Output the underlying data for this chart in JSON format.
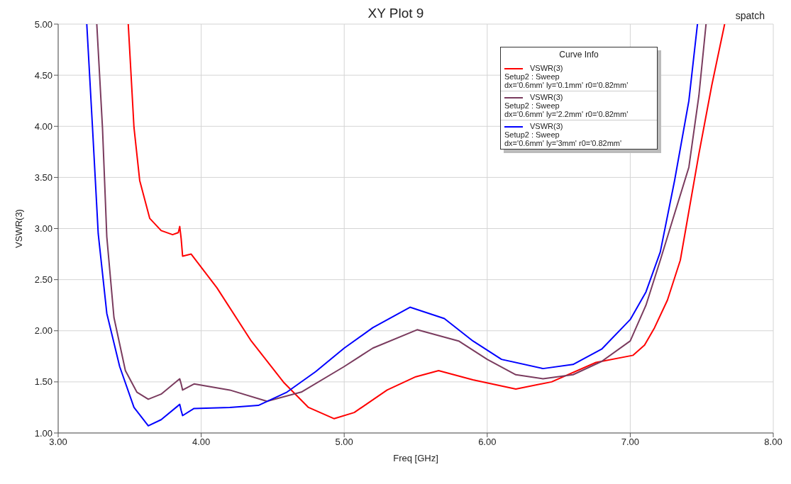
{
  "chart_data": {
    "type": "line",
    "title": "XY Plot 9",
    "xlabel": "Freq [GHz]",
    "ylabel": "VSWR(3)",
    "legend_title": "Curve Info",
    "annotations": [
      "spatch"
    ],
    "xlim": [
      3,
      8
    ],
    "xticks": [
      {
        "value": 3,
        "label": "3.00"
      },
      {
        "value": 4,
        "label": "4.00"
      },
      {
        "value": 5,
        "label": "5.00"
      },
      {
        "value": 6,
        "label": "6.00"
      },
      {
        "value": 7,
        "label": "7.00"
      },
      {
        "value": 8,
        "label": "8.00"
      }
    ],
    "ylim": [
      1,
      5
    ],
    "yticks": [
      {
        "value": 1,
        "label": "1.00"
      },
      {
        "value": 1.5,
        "label": "1.50"
      },
      {
        "value": 2,
        "label": "2.00"
      },
      {
        "value": 2.5,
        "label": "2.50"
      },
      {
        "value": 3,
        "label": "3.00"
      },
      {
        "value": 3.5,
        "label": "3.50"
      },
      {
        "value": 4,
        "label": "4.00"
      },
      {
        "value": 4.5,
        "label": "4.50"
      },
      {
        "value": 5,
        "label": "5.00"
      }
    ],
    "grid": true,
    "legend": "top right",
    "marker": "none",
    "line_style": "solid",
    "series": [
      {
        "name": "VSWR(3)\nSetup2 : Sweep\ndx='0.6mm' ly='0.1mm' r0='0.82mm'",
        "color": "#ff0000",
        "x": [
          3.49,
          3.53,
          3.57,
          3.64,
          3.72,
          3.8,
          3.84,
          3.85,
          3.86,
          3.87,
          3.93,
          4.11,
          4.35,
          4.58,
          4.75,
          4.93,
          5.07,
          5.3,
          5.5,
          5.66,
          5.9,
          6.2,
          6.45,
          6.76,
          7.02,
          7.1,
          7.17,
          7.26,
          7.35,
          7.48,
          7.57,
          7.66
        ],
        "values": [
          5,
          3.99,
          3.47,
          3.1,
          2.98,
          2.94,
          2.96,
          3.02,
          2.9,
          2.73,
          2.75,
          2.42,
          1.9,
          1.49,
          1.25,
          1.14,
          1.2,
          1.42,
          1.55,
          1.61,
          1.52,
          1.43,
          1.5,
          1.69,
          1.76,
          1.86,
          2.03,
          2.3,
          2.69,
          3.73,
          4.4,
          5
        ]
      },
      {
        "name": "VSWR(3)\nSetup2 : Sweep\ndx='0.6mm' ly='2.2mm' r0='0.82mm'",
        "color": "#7a3b5e",
        "x": [
          3.27,
          3.31,
          3.34,
          3.39,
          3.47,
          3.55,
          3.63,
          3.72,
          3.85,
          3.86,
          3.87,
          3.95,
          4.2,
          4.46,
          4.7,
          5.0,
          5.2,
          5.51,
          5.8,
          6.0,
          6.2,
          6.39,
          6.6,
          6.8,
          7.0,
          7.11,
          7.21,
          7.3,
          7.41,
          7.48,
          7.53
        ],
        "values": [
          5,
          3.98,
          2.92,
          2.13,
          1.61,
          1.4,
          1.33,
          1.38,
          1.53,
          1.48,
          1.42,
          1.48,
          1.42,
          1.31,
          1.4,
          1.65,
          1.83,
          2.01,
          1.9,
          1.72,
          1.57,
          1.53,
          1.57,
          1.7,
          1.9,
          2.25,
          2.69,
          3.1,
          3.6,
          4.3,
          5
        ]
      },
      {
        "name": "VSWR(3)\nSetup2 : Sweep\ndx='0.6mm' ly='3mm' r0='0.82mm'",
        "color": "#0000ff",
        "x": [
          3.2,
          3.24,
          3.28,
          3.34,
          3.43,
          3.53,
          3.63,
          3.72,
          3.85,
          3.86,
          3.87,
          3.95,
          4.2,
          4.4,
          4.6,
          4.8,
          5.0,
          5.2,
          5.46,
          5.7,
          5.9,
          6.1,
          6.39,
          6.6,
          6.8,
          7.0,
          7.11,
          7.21,
          7.31,
          7.41,
          7.47
        ],
        "values": [
          5,
          3.99,
          2.95,
          2.17,
          1.65,
          1.25,
          1.07,
          1.13,
          1.28,
          1.22,
          1.17,
          1.24,
          1.25,
          1.27,
          1.4,
          1.6,
          1.83,
          2.03,
          2.23,
          2.12,
          1.9,
          1.72,
          1.63,
          1.67,
          1.82,
          2.11,
          2.38,
          2.77,
          3.47,
          4.25,
          5
        ]
      }
    ]
  }
}
